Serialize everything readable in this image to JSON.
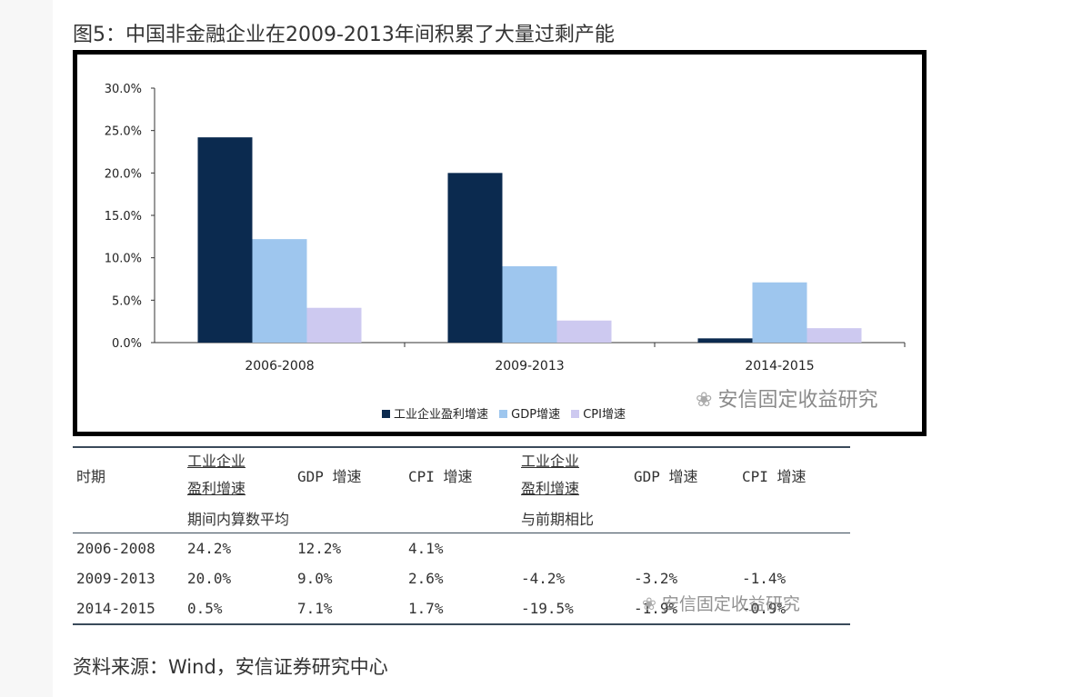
{
  "figure": {
    "title": "图5：中国非金融企业在2009-2013年间积累了大量过剩产能",
    "source": "资料来源：Wind，安信证券研究中心",
    "watermark": "安信固定收益研究"
  },
  "chart_data": {
    "type": "bar",
    "categories": [
      "2006-2008",
      "2009-2013",
      "2014-2015"
    ],
    "series": [
      {
        "name": "工业企业盈利增速",
        "values": [
          24.2,
          20.0,
          0.5
        ],
        "color": "#0b2a4f"
      },
      {
        "name": "GDP增速",
        "values": [
          12.2,
          9.0,
          7.1
        ],
        "color": "#9ec6ee"
      },
      {
        "name": "CPI增速",
        "values": [
          4.1,
          2.6,
          1.7
        ],
        "color": "#cdc9f0"
      }
    ],
    "ylim": [
      0,
      30
    ],
    "yticks": [
      "0.0%",
      "5.0%",
      "10.0%",
      "15.0%",
      "20.0%",
      "25.0%",
      "30.0%"
    ],
    "legend": "bottom",
    "grid": false
  },
  "table": {
    "header": {
      "period": "时期",
      "g1_line1": "工业企业",
      "g1_line2": "盈利增速",
      "gdp1": "GDP 增速",
      "cpi1": "CPI 增速",
      "g2_line1": "工业企业",
      "g2_line2": "盈利增速",
      "gdp2": "GDP 增速",
      "cpi2": "CPI 增速"
    },
    "subheader": {
      "avg": "期间内算数平均",
      "yoy": "与前期相比"
    },
    "rows": [
      {
        "period": "2006-2008",
        "ind": "24.2%",
        "gdp": "12.2%",
        "cpi": "4.1%",
        "ind_chg": "",
        "gdp_chg": "",
        "cpi_chg": ""
      },
      {
        "period": "2009-2013",
        "ind": "20.0%",
        "gdp": "9.0%",
        "cpi": "2.6%",
        "ind_chg": "-4.2%",
        "gdp_chg": "-3.2%",
        "cpi_chg": "-1.4%"
      },
      {
        "period": "2014-2015",
        "ind": "0.5%",
        "gdp": "7.1%",
        "cpi": "1.7%",
        "ind_chg": "-19.5%",
        "gdp_chg": "-1.9%",
        "cpi_chg": "-0.9%"
      }
    ]
  }
}
